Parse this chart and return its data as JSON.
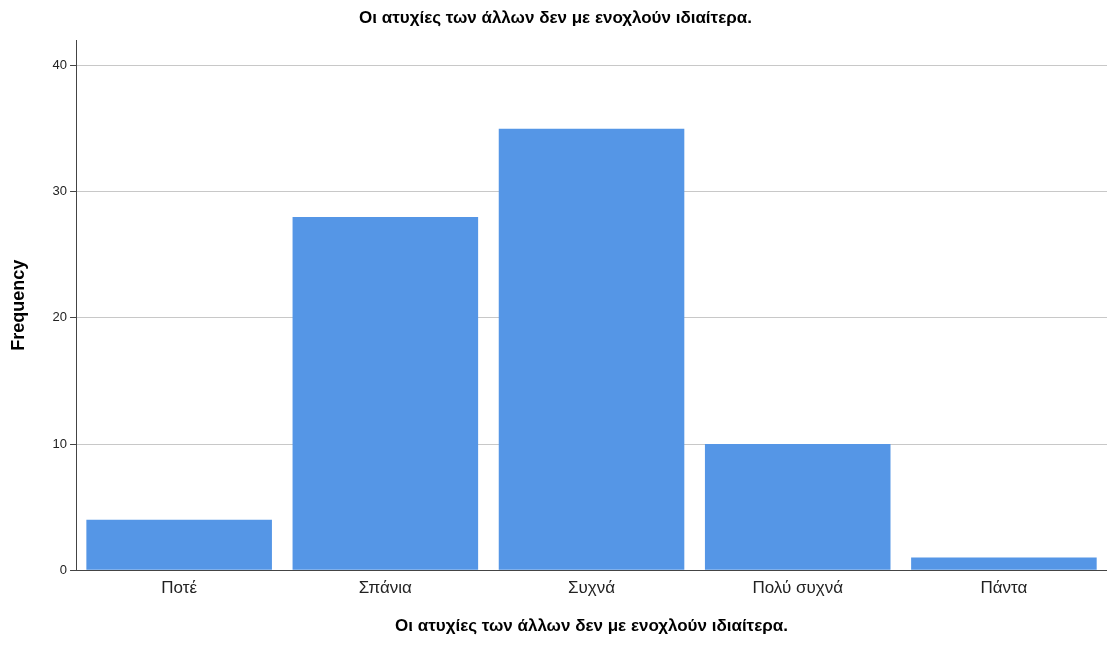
{
  "chart_data": {
    "type": "bar",
    "title": "Οι ατυχίες των άλλων δεν με ενοχλούν ιδιαίτερα.",
    "xlabel": "Οι ατυχίες των άλλων δεν με ενοχλούν ιδιαίτερα.",
    "ylabel": "Frequency",
    "categories": [
      "Ποτέ",
      "Σπάνια",
      "Συχνά",
      "Πολύ συχνά",
      "Πάντα"
    ],
    "values": [
      4,
      28,
      35,
      10,
      1
    ],
    "color": "#5596e6",
    "ylim": [
      0,
      42
    ],
    "yticks": [
      0,
      10,
      20,
      30,
      40
    ],
    "grid": "y",
    "legend": false
  }
}
